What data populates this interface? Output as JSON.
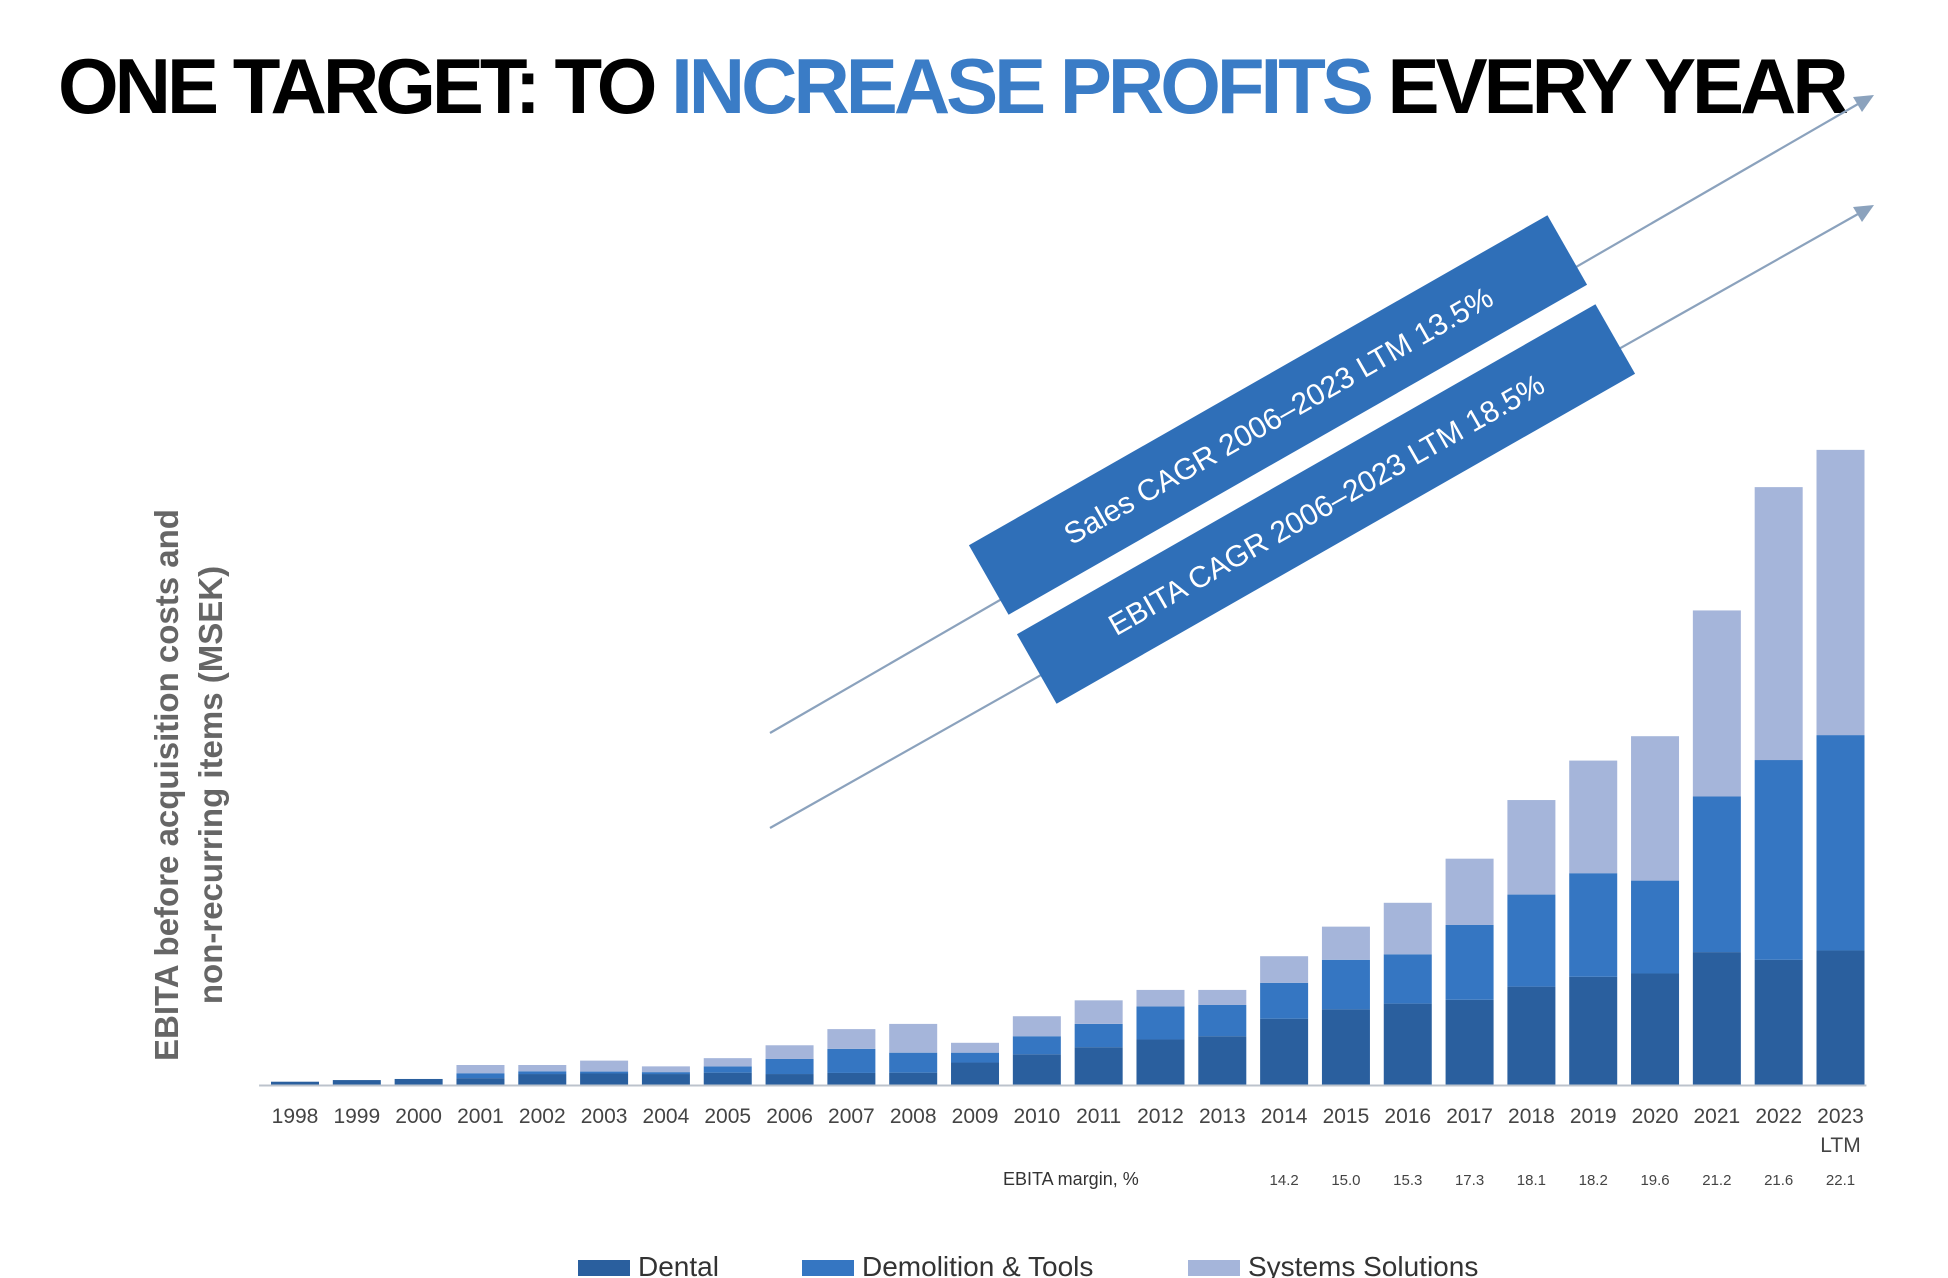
{
  "title": {
    "part1": "ONE TARGET: TO ",
    "highlight": "INCREASE PROFITS",
    "part2": " EVERY YEAR"
  },
  "colors": {
    "title_highlight": "#3a7cc6",
    "dental": "#2a5f9e",
    "demolition_tools": "#3576c2",
    "systems_solutions": "#a5b5da",
    "banner": "#2f6fb8",
    "arrow": "#8ba2bd",
    "axis": "#bcc3cc"
  },
  "chart_data": {
    "type": "bar",
    "stacked": true,
    "ylabel_line1": "EBITA before acquisition costs and",
    "ylabel_line2": "non-recurring items (MSEK)",
    "categories": [
      "1998",
      "1999",
      "2000",
      "2001",
      "2002",
      "2003",
      "2004",
      "2005",
      "2006",
      "2007",
      "2008",
      "2009",
      "2010",
      "2011",
      "2012",
      "2013",
      "2014",
      "2015",
      "2016",
      "2017",
      "2018",
      "2019",
      "2020",
      "2021",
      "2022",
      "2023"
    ],
    "category_sublabels": {
      "2023": "LTM"
    },
    "series": [
      {
        "name": "Dental",
        "values": [
          12,
          18,
          22,
          25,
          40,
          42,
          40,
          45,
          40,
          44,
          45,
          82,
          112,
          138,
          166,
          178,
          242,
          276,
          297,
          311,
          359,
          395,
          407,
          485,
          457,
          491
        ]
      },
      {
        "name": "Demolition & Tools",
        "values": [
          0,
          0,
          0,
          18,
          10,
          7,
          7,
          23,
          55,
          88,
          73,
          36,
          66,
          85,
          121,
          114,
          131,
          181,
          180,
          273,
          336,
          378,
          339,
          568,
          729,
          786
        ]
      },
      {
        "name": "Systems Solutions",
        "values": [
          0,
          0,
          0,
          30,
          23,
          40,
          21,
          30,
          50,
          72,
          105,
          36,
          73,
          86,
          60,
          55,
          97,
          121,
          188,
          242,
          345,
          411,
          527,
          679,
          996,
          1041
        ]
      }
    ],
    "margin_label": "EBITA margin, %",
    "ebita_margin": {
      "2014": "14.2",
      "2015": "15.0",
      "2016": "15.3",
      "2017": "17.3",
      "2018": "18.1",
      "2019": "18.2",
      "2020": "19.6",
      "2021": "21.2",
      "2022": "21.6",
      "2023": "22.1"
    },
    "annotations": [
      "Sales CAGR 2006–2023 LTM 13.5%",
      "EBITA CAGR 2006–2023 LTM 18.5%"
    ],
    "legend": [
      "Dental",
      "Demolition & Tools",
      "Systems Solutions"
    ],
    "legend_position": "bottom"
  }
}
